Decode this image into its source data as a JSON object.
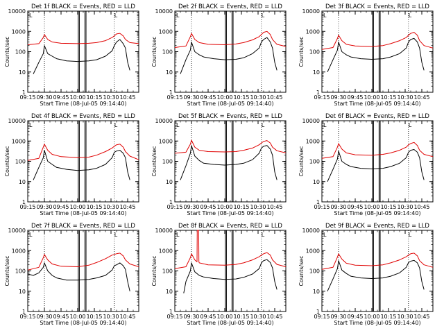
{
  "figure": {
    "x_axis_label": "Start Time (08-Jul-05 09:14:40)",
    "y_axis_label": "Counts/sec",
    "x_tick_labels": [
      "09:15",
      "09:30",
      "09:45",
      "10:00",
      "10:15",
      "10:30",
      "10:45"
    ],
    "y_tick_labels": [
      "1",
      "10",
      "100",
      "1000",
      "10000"
    ],
    "corner_mark": "L"
  },
  "colors": {
    "events": "#000000",
    "lld": "#e00000",
    "markers": "#000000"
  },
  "chart_data": [
    {
      "type": "line",
      "title": "Det 1f BLACK = Events, RED = LLD",
      "yscale": "log",
      "ylim": [
        1,
        10000
      ],
      "xlim_minutes": [
        0,
        100
      ],
      "series": [
        {
          "name": "Events",
          "color": "#000000",
          "x": [
            5,
            10,
            14,
            15,
            18,
            22,
            26,
            35,
            45,
            55,
            62,
            70,
            76,
            78,
            80,
            83,
            86,
            88,
            90,
            92
          ],
          "y": [
            8,
            30,
            80,
            200,
            80,
            60,
            45,
            35,
            33,
            35,
            40,
            60,
            110,
            200,
            300,
            400,
            250,
            150,
            30,
            12
          ]
        },
        {
          "name": "LLD",
          "color": "#e00000",
          "x": [
            0,
            10,
            14,
            15,
            18,
            22,
            30,
            45,
            55,
            62,
            70,
            76,
            78,
            80,
            83,
            86,
            88,
            92,
            100
          ],
          "y": [
            220,
            250,
            500,
            700,
            400,
            300,
            260,
            250,
            260,
            280,
            350,
            500,
            600,
            750,
            800,
            600,
            400,
            280,
            250
          ]
        }
      ],
      "vlines_dotted": [
        15,
        78,
        100
      ],
      "vlines_solid": [
        45.5,
        46.5,
        51.5,
        52.5
      ]
    },
    {
      "type": "line",
      "title": "Det 2f BLACK = Events, RED = LLD",
      "yscale": "log",
      "ylim": [
        1,
        10000
      ],
      "xlim_minutes": [
        0,
        100
      ],
      "series": [
        {
          "name": "Events",
          "color": "#000000",
          "x": [
            5,
            10,
            14,
            15,
            18,
            22,
            26,
            35,
            45,
            55,
            62,
            70,
            76,
            78,
            80,
            83,
            86,
            88,
            90,
            92
          ],
          "y": [
            8,
            40,
            120,
            300,
            100,
            70,
            55,
            45,
            40,
            42,
            50,
            80,
            150,
            300,
            400,
            500,
            300,
            150,
            30,
            12
          ]
        },
        {
          "name": "LLD",
          "color": "#e00000",
          "x": [
            0,
            10,
            14,
            15,
            18,
            22,
            30,
            45,
            55,
            62,
            70,
            76,
            78,
            80,
            83,
            86,
            88,
            92,
            100
          ],
          "y": [
            160,
            190,
            550,
            800,
            400,
            280,
            230,
            220,
            240,
            280,
            380,
            550,
            700,
            900,
            1000,
            700,
            400,
            230,
            180
          ]
        }
      ],
      "vlines_dotted": [
        15,
        78,
        100
      ],
      "vlines_solid": [
        45.5,
        46.5,
        51.5,
        52.5
      ]
    },
    {
      "type": "line",
      "title": "Det 3f BLACK = Events, RED = LLD",
      "yscale": "log",
      "ylim": [
        1,
        10000
      ],
      "xlim_minutes": [
        0,
        100
      ],
      "series": [
        {
          "name": "Events",
          "color": "#000000",
          "x": [
            5,
            10,
            14,
            15,
            18,
            22,
            26,
            35,
            45,
            55,
            62,
            70,
            76,
            78,
            80,
            83,
            86,
            88,
            90,
            92
          ],
          "y": [
            10,
            40,
            120,
            300,
            100,
            70,
            55,
            45,
            42,
            45,
            55,
            80,
            150,
            300,
            400,
            450,
            300,
            150,
            30,
            12
          ]
        },
        {
          "name": "LLD",
          "color": "#e00000",
          "x": [
            0,
            10,
            14,
            15,
            18,
            22,
            30,
            45,
            55,
            62,
            70,
            76,
            78,
            80,
            83,
            86,
            88,
            92,
            100
          ],
          "y": [
            130,
            160,
            450,
            650,
            350,
            230,
            190,
            180,
            200,
            250,
            350,
            500,
            650,
            800,
            900,
            650,
            350,
            200,
            150
          ]
        }
      ],
      "vlines_dotted": [
        15,
        78,
        100
      ],
      "vlines_solid": [
        45.5,
        46.5,
        51.5,
        52.5
      ]
    },
    {
      "type": "line",
      "title": "Det 4f BLACK = Events, RED = LLD",
      "yscale": "log",
      "ylim": [
        1,
        10000
      ],
      "xlim_minutes": [
        0,
        100
      ],
      "series": [
        {
          "name": "Events",
          "color": "#000000",
          "x": [
            5,
            10,
            14,
            15,
            18,
            22,
            26,
            35,
            45,
            55,
            62,
            70,
            76,
            78,
            80,
            83,
            86,
            88,
            90,
            92
          ],
          "y": [
            12,
            50,
            150,
            350,
            100,
            70,
            50,
            40,
            35,
            38,
            45,
            70,
            150,
            280,
            320,
            350,
            250,
            150,
            30,
            12
          ]
        },
        {
          "name": "LLD",
          "color": "#e00000",
          "x": [
            0,
            10,
            14,
            15,
            18,
            22,
            30,
            45,
            55,
            62,
            70,
            76,
            78,
            80,
            83,
            86,
            88,
            92,
            100
          ],
          "y": [
            110,
            140,
            500,
            700,
            350,
            220,
            170,
            150,
            160,
            200,
            300,
            450,
            550,
            650,
            700,
            500,
            300,
            180,
            120
          ]
        }
      ],
      "vlines_dotted": [
        15,
        78,
        100
      ],
      "vlines_solid": [
        45.5,
        46.5,
        51.5,
        52.5
      ]
    },
    {
      "type": "line",
      "title": "Det 5f BLACK = Events, RED = LLD",
      "yscale": "log",
      "ylim": [
        1,
        10000
      ],
      "xlim_minutes": [
        0,
        100
      ],
      "series": [
        {
          "name": "Events",
          "color": "#000000",
          "x": [
            5,
            10,
            14,
            15,
            18,
            22,
            26,
            35,
            45,
            55,
            62,
            70,
            76,
            78,
            80,
            83,
            86,
            88,
            90,
            92
          ],
          "y": [
            12,
            60,
            250,
            600,
            180,
            110,
            80,
            70,
            65,
            70,
            80,
            120,
            250,
            450,
            550,
            600,
            400,
            200,
            30,
            12
          ]
        },
        {
          "name": "LLD",
          "color": "#e00000",
          "x": [
            0,
            10,
            14,
            15,
            18,
            22,
            30,
            45,
            55,
            62,
            70,
            76,
            78,
            80,
            83,
            86,
            88,
            92,
            100
          ],
          "y": [
            250,
            280,
            700,
            1100,
            500,
            350,
            300,
            290,
            300,
            350,
            450,
            650,
            800,
            950,
            1050,
            800,
            500,
            330,
            260
          ]
        }
      ],
      "vlines_dotted": [
        15,
        78,
        100
      ],
      "vlines_solid": [
        45.5,
        46.5,
        51.5,
        52.5
      ]
    },
    {
      "type": "line",
      "title": "Det 6f BLACK = Events, RED = LLD",
      "yscale": "log",
      "ylim": [
        1,
        10000
      ],
      "xlim_minutes": [
        0,
        100
      ],
      "series": [
        {
          "name": "Events",
          "color": "#000000",
          "x": [
            5,
            10,
            14,
            15,
            18,
            22,
            26,
            35,
            45,
            55,
            62,
            70,
            76,
            78,
            80,
            83,
            86,
            88,
            90,
            92
          ],
          "y": [
            10,
            40,
            130,
            320,
            100,
            70,
            55,
            45,
            42,
            45,
            55,
            80,
            150,
            280,
            350,
            380,
            280,
            150,
            30,
            12
          ]
        },
        {
          "name": "LLD",
          "color": "#e00000",
          "x": [
            0,
            10,
            14,
            15,
            18,
            22,
            30,
            45,
            55,
            62,
            70,
            76,
            78,
            80,
            83,
            86,
            88,
            92,
            100
          ],
          "y": [
            140,
            170,
            500,
            750,
            400,
            260,
            210,
            200,
            220,
            260,
            350,
            500,
            650,
            750,
            850,
            600,
            350,
            220,
            170
          ]
        }
      ],
      "vlines_dotted": [
        15,
        78,
        100
      ],
      "vlines_solid": [
        45.5,
        46.5,
        51.5,
        52.5
      ]
    },
    {
      "type": "line",
      "title": "Det 7f BLACK = Events, RED = LLD",
      "yscale": "log",
      "ylim": [
        1,
        10000
      ],
      "xlim_minutes": [
        0,
        100
      ],
      "series": [
        {
          "name": "Events",
          "color": "#000000",
          "x": [
            0,
            5,
            10,
            14,
            15,
            18,
            22,
            26,
            35,
            45,
            55,
            62,
            70,
            76,
            78,
            80,
            83,
            86,
            88,
            90,
            92
          ],
          "y": [
            70,
            60,
            80,
            150,
            250,
            100,
            60,
            45,
            35,
            35,
            38,
            45,
            60,
            110,
            180,
            200,
            250,
            180,
            120,
            30,
            10
          ]
        },
        {
          "name": "LLD",
          "color": "#e00000",
          "x": [
            0,
            10,
            14,
            15,
            18,
            22,
            30,
            45,
            55,
            62,
            70,
            76,
            78,
            80,
            83,
            86,
            88,
            92,
            100
          ],
          "y": [
            110,
            150,
            450,
            650,
            350,
            220,
            170,
            160,
            190,
            260,
            400,
            600,
            650,
            700,
            750,
            550,
            350,
            220,
            160
          ]
        }
      ],
      "vlines_dotted": [
        15,
        78,
        100
      ],
      "vlines_solid": [
        45.5,
        46.5,
        51.5,
        52.5
      ]
    },
    {
      "type": "line",
      "title": "Det 8f BLACK = Events, RED = LLD",
      "yscale": "log",
      "ylim": [
        1,
        10000
      ],
      "xlim_minutes": [
        0,
        100
      ],
      "series": [
        {
          "name": "Events",
          "color": "#000000",
          "x": [
            8,
            10,
            14,
            15,
            18,
            22,
            26,
            35,
            45,
            55,
            62,
            70,
            76,
            78,
            80,
            83,
            86,
            88,
            90,
            92
          ],
          "y": [
            8,
            30,
            100,
            250,
            90,
            60,
            50,
            42,
            38,
            40,
            48,
            70,
            130,
            250,
            320,
            360,
            260,
            140,
            30,
            12
          ]
        },
        {
          "name": "LLD",
          "color": "#e00000",
          "x": [
            0,
            10,
            14,
            15,
            18,
            20,
            20.2,
            21.5,
            21.7,
            22,
            30,
            45,
            55,
            62,
            70,
            76,
            78,
            80,
            83,
            86,
            88,
            92,
            100
          ],
          "y": [
            130,
            160,
            450,
            700,
            350,
            280,
            10000,
            10000,
            280,
            250,
            200,
            190,
            210,
            250,
            350,
            500,
            600,
            700,
            800,
            600,
            350,
            210,
            160
          ]
        }
      ],
      "vlines_dotted": [
        15,
        78,
        100
      ],
      "vlines_solid": [
        45.5,
        46.5,
        51.5,
        52.5
      ]
    },
    {
      "type": "line",
      "title": "Det 9f BLACK = Events, RED = LLD",
      "yscale": "log",
      "ylim": [
        1,
        10000
      ],
      "xlim_minutes": [
        0,
        100
      ],
      "series": [
        {
          "name": "Events",
          "color": "#000000",
          "x": [
            5,
            10,
            14,
            15,
            18,
            22,
            26,
            35,
            45,
            55,
            62,
            70,
            76,
            78,
            80,
            83,
            86,
            88,
            90,
            92
          ],
          "y": [
            10,
            40,
            130,
            320,
            110,
            75,
            55,
            45,
            42,
            45,
            55,
            80,
            150,
            260,
            300,
            330,
            250,
            140,
            30,
            12
          ]
        },
        {
          "name": "LLD",
          "color": "#e00000",
          "x": [
            0,
            10,
            14,
            15,
            18,
            22,
            30,
            45,
            55,
            62,
            70,
            76,
            78,
            80,
            83,
            86,
            88,
            92,
            100
          ],
          "y": [
            120,
            150,
            480,
            700,
            380,
            240,
            190,
            180,
            200,
            250,
            350,
            500,
            600,
            700,
            750,
            550,
            320,
            200,
            150
          ]
        }
      ],
      "vlines_dotted": [
        15,
        78,
        100
      ],
      "vlines_solid": [
        45.5,
        46.5,
        51.5,
        52.5
      ]
    }
  ]
}
